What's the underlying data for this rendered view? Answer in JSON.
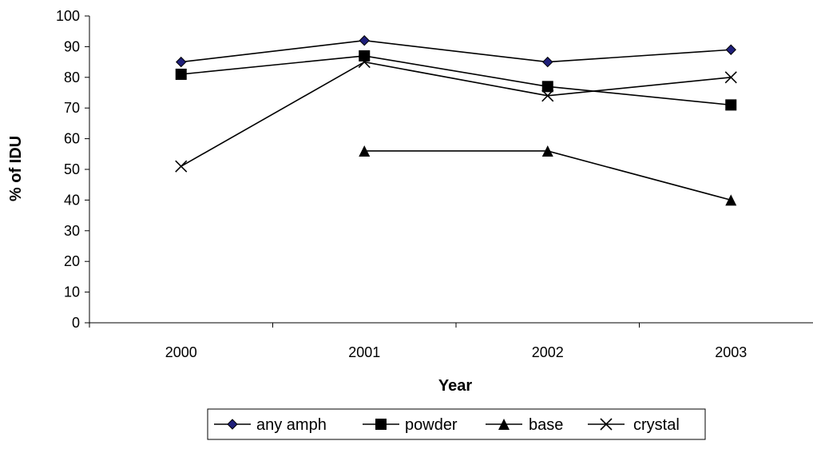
{
  "chart_data": {
    "type": "line",
    "xlabel": "Year",
    "ylabel": "% of IDU",
    "categories": [
      "2000",
      "2001",
      "2002",
      "2003"
    ],
    "ylim": [
      0,
      100
    ],
    "yticks": [
      0,
      10,
      20,
      30,
      40,
      50,
      60,
      70,
      80,
      90,
      100
    ],
    "grid": false,
    "legend_position": "bottom",
    "series": [
      {
        "name": "any amph",
        "marker": "diamond",
        "color": "#000000",
        "marker_color": "#1f1f7a",
        "values": [
          85,
          92,
          85,
          89
        ]
      },
      {
        "name": "powder",
        "marker": "square",
        "color": "#000000",
        "marker_color": "#000000",
        "values": [
          81,
          87,
          77,
          71
        ]
      },
      {
        "name": "base",
        "marker": "triangle",
        "color": "#000000",
        "marker_color": "#000000",
        "values": [
          null,
          56,
          56,
          40
        ]
      },
      {
        "name": "crystal",
        "marker": "x",
        "color": "#000000",
        "marker_color": "#000000",
        "values": [
          51,
          85,
          74,
          80
        ]
      }
    ]
  }
}
